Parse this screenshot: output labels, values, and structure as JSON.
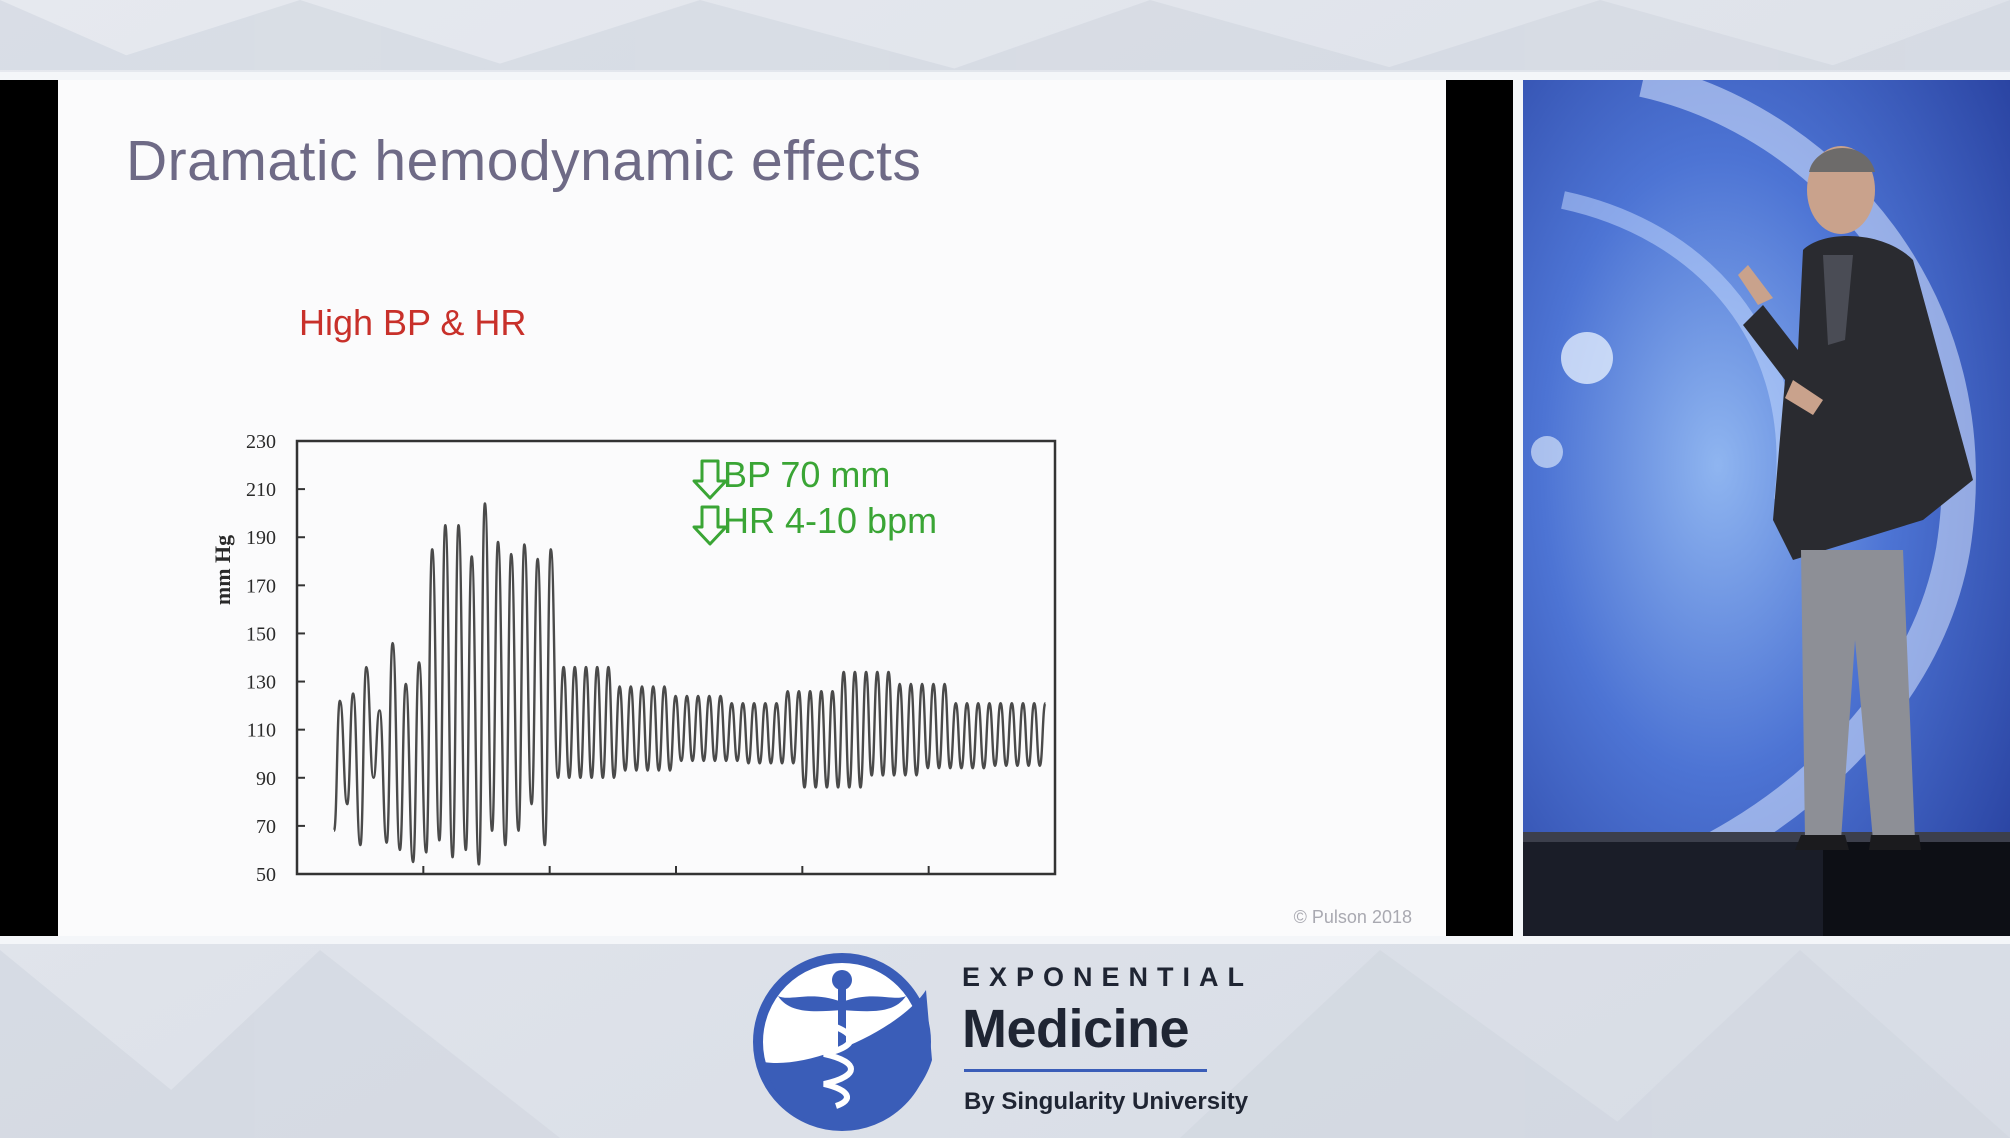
{
  "slide": {
    "title": "Dramatic hemodynamic effects",
    "chart_heading": "High BP & HR",
    "annotations": [
      "BP 70 mm",
      "HR 4-10 bpm"
    ],
    "copyright": "© Pulson 2018"
  },
  "chart_data": {
    "type": "line",
    "title": "High BP & HR",
    "ylabel": "mm Hg",
    "xlabel": "",
    "ylim": [
      50,
      230
    ],
    "yticks": [
      "230",
      "210",
      "190",
      "170",
      "150",
      "130",
      "110",
      "90",
      "70",
      "50"
    ],
    "grid": false,
    "series": [
      {
        "description_segments": [
          {
            "phase": "irregular high",
            "peaks_mmHg": [
              122,
              125,
              136,
              118,
              146,
              129,
              138,
              185,
              195,
              195,
              182,
              204,
              188,
              183,
              187,
              181,
              185
            ],
            "troughs_mmHg": [
              68,
              79,
              62,
              90,
              63,
              60,
              55,
              59,
              64,
              57,
              60,
              54,
              68,
              62
            ]
          },
          {
            "phase": "steady oscillation",
            "peaks_mmHg": [
              136,
              128,
              124,
              121,
              126,
              134,
              129,
              121,
              121
            ],
            "troughs_mmHg": [
              90,
              93,
              97,
              96,
              86,
              91,
              94,
              95
            ]
          }
        ]
      }
    ],
    "annotation_color": "#3aa535",
    "heading_color": "#c8302a"
  },
  "logo": {
    "top": "EXPONENTIAL",
    "main": "Medicine",
    "sub": "By Singularity University",
    "brand_color": "#3a5db8"
  }
}
